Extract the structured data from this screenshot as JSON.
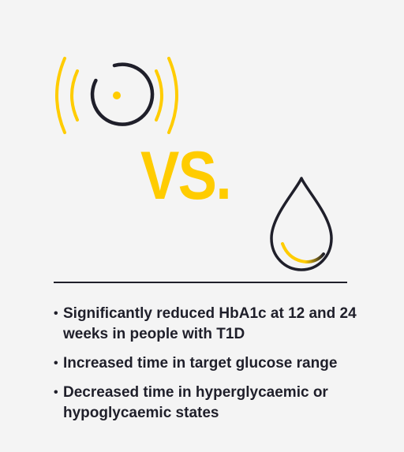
{
  "colors": {
    "background": "#f4f4f4",
    "accent": "#ffcc00",
    "dark": "#1f1f2a"
  },
  "icons": {
    "sensor": "cgm-sensor-signal-icon",
    "drop": "blood-drop-icon"
  },
  "vs_label": "VS.",
  "benefits": [
    "Significantly reduced HbA1c at 12 and 24 weeks in people with T1D",
    "Increased time in target glucose range",
    "Decreased time in hyperglycaemic or hypoglycaemic states"
  ]
}
